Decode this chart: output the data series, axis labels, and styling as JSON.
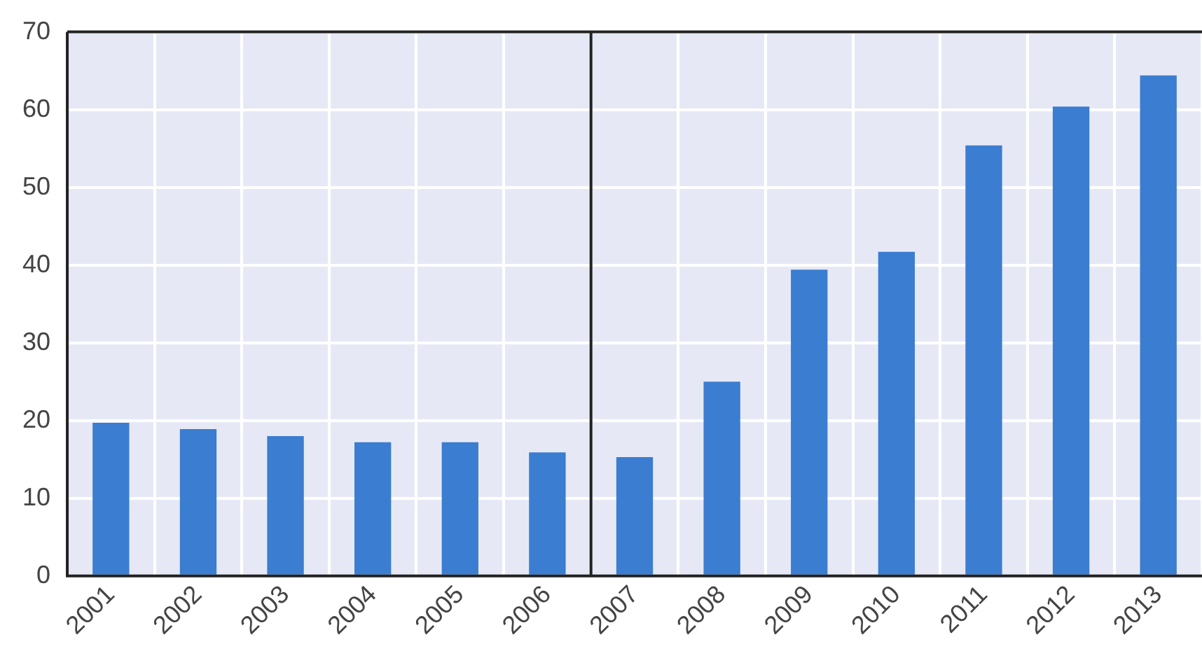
{
  "chart_data": {
    "type": "bar",
    "categories": [
      "2001",
      "2002",
      "2003",
      "2004",
      "2005",
      "2006",
      "2007",
      "2008",
      "2009",
      "2010",
      "2011",
      "2012",
      "2013"
    ],
    "values": [
      19.7,
      18.9,
      18.0,
      17.2,
      17.2,
      15.9,
      15.3,
      25.0,
      39.4,
      41.7,
      55.4,
      60.4,
      64.4
    ],
    "color": "#3b7dd0",
    "ylim": [
      0,
      70
    ],
    "yticks": [
      0,
      10,
      20,
      30,
      40,
      50,
      60,
      70
    ],
    "grid": true,
    "ref_lines": [
      {
        "axis": "x",
        "value": "2007",
        "color": "#222222"
      }
    ]
  }
}
